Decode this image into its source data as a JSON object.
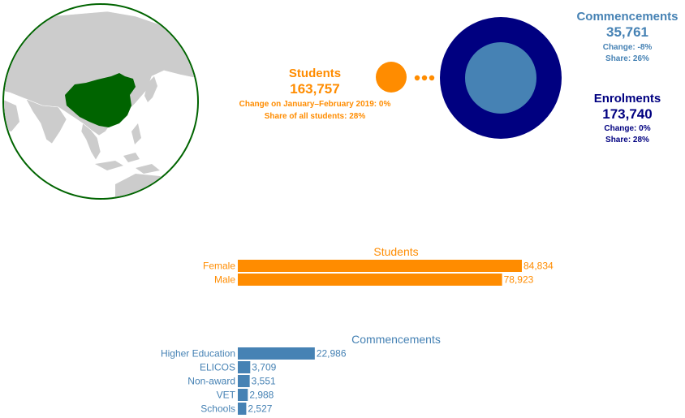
{
  "students_summary": {
    "title": "Students",
    "value": "163,757",
    "change": "Change on January–February 2019: 0%",
    "share": "Share of all students: 28%"
  },
  "commencements_summary": {
    "title": "Commencements",
    "value": "35,761",
    "change": "Change: -8%",
    "share": "Share: 26%"
  },
  "enrolments_summary": {
    "title": "Enrolments",
    "value": "173,740",
    "change": "Change: 0%",
    "share": "Share: 28%"
  },
  "colors": {
    "orange": "#ff8c00",
    "steelblue": "#4682b4",
    "navy": "#000080",
    "china_green": "#006400",
    "land_grey": "#cccccc"
  },
  "chart_data": [
    {
      "type": "bar",
      "orientation": "horizontal",
      "title": "Students",
      "categories": [
        "Female",
        "Male"
      ],
      "values": [
        84834,
        78923
      ],
      "value_labels": [
        "84,834",
        "78,923"
      ],
      "color": "#ff8c00"
    },
    {
      "type": "bar",
      "orientation": "horizontal",
      "title": "Commencements",
      "categories": [
        "Higher Education",
        "ELICOS",
        "Non-award",
        "VET",
        "Schools"
      ],
      "values": [
        22986,
        3709,
        3551,
        2988,
        2527
      ],
      "value_labels": [
        "22,986",
        "3,709",
        "3,551",
        "2,988",
        "2,527"
      ],
      "color": "#4682b4"
    }
  ]
}
